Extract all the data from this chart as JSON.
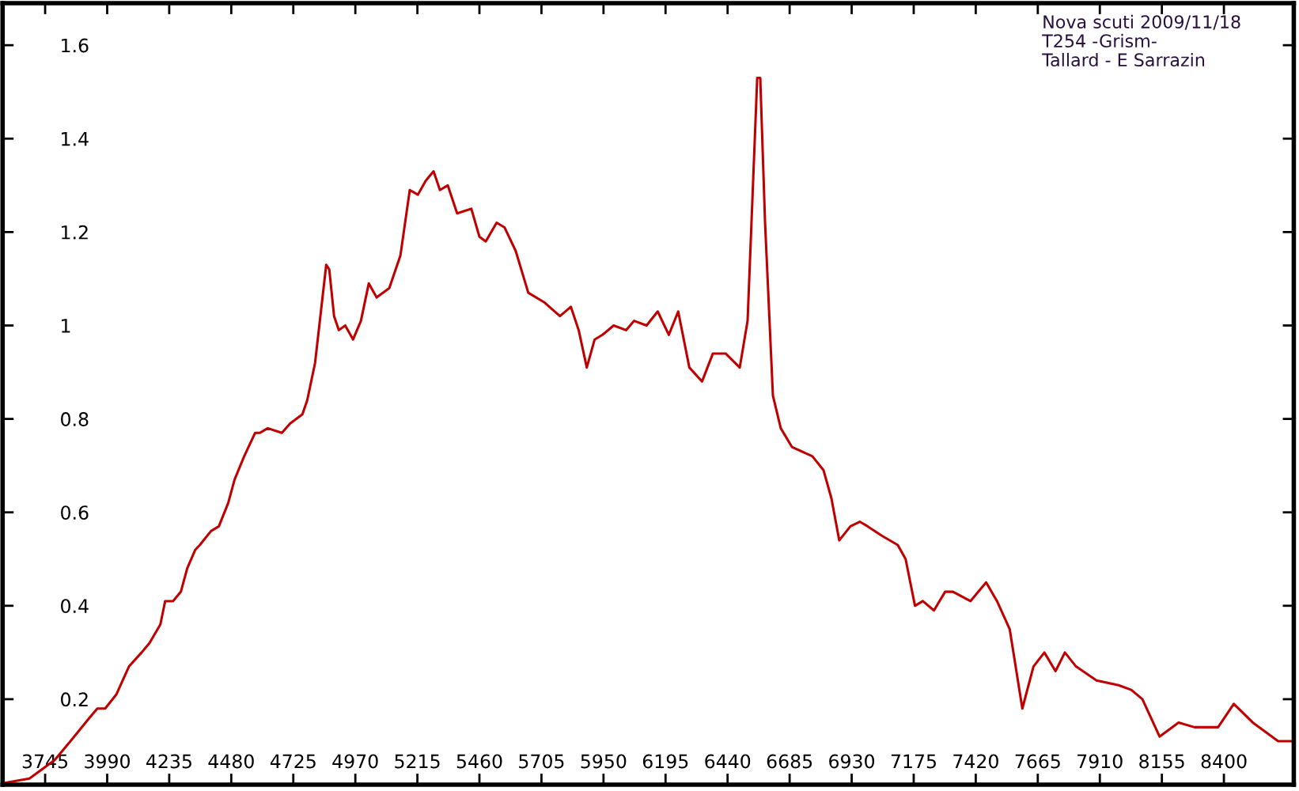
{
  "chart_data": {
    "type": "line",
    "line_style": "solid",
    "marker": "none",
    "grid": false,
    "legend": false,
    "annotations": [
      "Nova scuti 2009/11/18",
      "T254 -Grism-",
      "Tallard - E Sarrazin"
    ],
    "xlim": [
      3577,
      8676
    ],
    "ylim": [
      0.017,
      1.69
    ],
    "xticks": [
      3745,
      3990,
      4235,
      4480,
      4725,
      4970,
      5215,
      5460,
      5705,
      5950,
      6195,
      6440,
      6685,
      6930,
      7175,
      7420,
      7665,
      7910,
      8155,
      8400
    ],
    "yticks": [
      0.2,
      0.4,
      0.6,
      0.8,
      1,
      1.2,
      1.4,
      1.6
    ],
    "series": [
      {
        "color": "#c00000",
        "x": [
          3577,
          3683,
          3783,
          3845,
          3920,
          3951,
          3982,
          4026,
          4076,
          4126,
          4157,
          4200,
          4219,
          4250,
          4281,
          4306,
          4338,
          4356,
          4400,
          4431,
          4468,
          4493,
          4531,
          4574,
          4593,
          4624,
          4680,
          4712,
          4761,
          4780,
          4811,
          4855,
          4867,
          4886,
          4905,
          4930,
          4961,
          4992,
          5023,
          5054,
          5104,
          5148,
          5185,
          5217,
          5248,
          5279,
          5304,
          5335,
          5372,
          5428,
          5460,
          5485,
          5528,
          5559,
          5603,
          5653,
          5715,
          5778,
          5821,
          5852,
          5884,
          5915,
          5946,
          5990,
          6039,
          6071,
          6120,
          6164,
          6208,
          6245,
          6289,
          6339,
          6382,
          6432,
          6488,
          6519,
          6557,
          6569,
          6588,
          6619,
          6650,
          6694,
          6775,
          6819,
          6850,
          6881,
          6925,
          6962,
          6993,
          7049,
          7112,
          7143,
          7180,
          7211,
          7255,
          7299,
          7330,
          7399,
          7461,
          7504,
          7554,
          7604,
          7648,
          7691,
          7735,
          7772,
          7816,
          7897,
          7984,
          8034,
          8078,
          8146,
          8221,
          8284,
          8377,
          8439,
          8514,
          8564,
          8614,
          8676
        ],
        "values": [
          0.02,
          0.03,
          0.07,
          0.11,
          0.16,
          0.18,
          0.18,
          0.21,
          0.27,
          0.3,
          0.32,
          0.36,
          0.41,
          0.41,
          0.43,
          0.48,
          0.52,
          0.53,
          0.56,
          0.57,
          0.62,
          0.67,
          0.72,
          0.77,
          0.77,
          0.78,
          0.77,
          0.79,
          0.81,
          0.84,
          0.92,
          1.13,
          1.12,
          1.02,
          0.99,
          1.0,
          0.97,
          1.01,
          1.09,
          1.06,
          1.08,
          1.15,
          1.29,
          1.28,
          1.31,
          1.33,
          1.29,
          1.3,
          1.24,
          1.25,
          1.19,
          1.18,
          1.22,
          1.21,
          1.16,
          1.07,
          1.05,
          1.02,
          1.04,
          0.99,
          0.91,
          0.97,
          0.98,
          1.0,
          0.99,
          1.01,
          1.0,
          1.03,
          0.98,
          1.03,
          0.91,
          0.88,
          0.94,
          0.94,
          0.91,
          1.01,
          1.53,
          1.53,
          1.22,
          0.85,
          0.78,
          0.74,
          0.72,
          0.69,
          0.63,
          0.54,
          0.57,
          0.58,
          0.57,
          0.55,
          0.53,
          0.5,
          0.4,
          0.41,
          0.39,
          0.43,
          0.43,
          0.41,
          0.45,
          0.41,
          0.35,
          0.18,
          0.27,
          0.3,
          0.26,
          0.3,
          0.27,
          0.24,
          0.23,
          0.22,
          0.2,
          0.12,
          0.15,
          0.14,
          0.14,
          0.19,
          0.15,
          0.13,
          0.11,
          0.11
        ]
      }
    ]
  }
}
